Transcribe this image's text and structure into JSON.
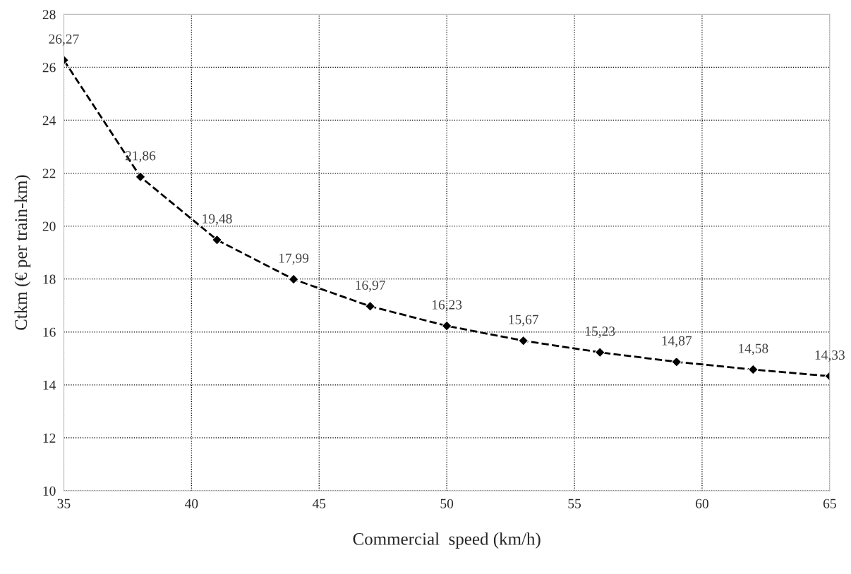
{
  "chart_data": {
    "type": "line",
    "xlabel": "Commercial  speed (km/h)",
    "ylabel": "Ctkm (€ per train-km)",
    "x": [
      35,
      38,
      41,
      44,
      47,
      50,
      53,
      56,
      59,
      62,
      65
    ],
    "series": [
      {
        "color": "#000000",
        "values": [
          26.27,
          21.86,
          19.48,
          17.99,
          16.97,
          16.23,
          15.67,
          15.23,
          14.87,
          14.58,
          14.33
        ],
        "value_labels": [
          "26,27",
          "21,86",
          "19,48",
          "17,99",
          "16,97",
          "16,23",
          "15,67",
          "15,23",
          "14,87",
          "14,58",
          "14,33"
        ]
      }
    ],
    "xlim": [
      35,
      65
    ],
    "xticks": [
      35,
      40,
      45,
      50,
      55,
      60,
      65
    ],
    "ylim": [
      10,
      28
    ],
    "yticks": [
      10,
      12,
      14,
      16,
      18,
      20,
      22,
      24,
      26,
      28
    ],
    "grid": true,
    "legend": false,
    "marker": "diamond",
    "line_style": "dashed"
  }
}
